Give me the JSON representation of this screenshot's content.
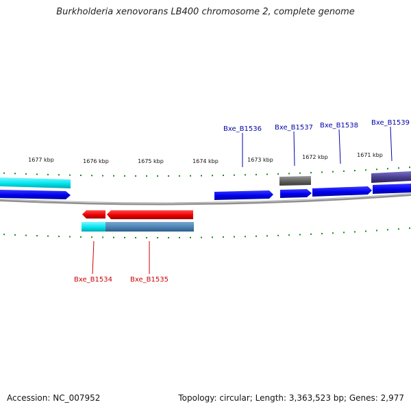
{
  "title": "Burkholderia xenovorans LB400 chromosome 2, complete genome",
  "footer": {
    "accession": "Accession: NC_007952",
    "topology": "Topology: circular; Length: 3,363,523 bp; Genes: 2,977"
  },
  "kbp_labels": [
    "1677 kbp",
    "1676 kbp",
    "1675 kbp",
    "1674 kbp",
    "1673 kbp",
    "1672 kbp",
    "1671 kbp"
  ],
  "gene_labels": {
    "top": [
      "Bxe_B1536",
      "Bxe_B1537",
      "Bxe_B1538",
      "Bxe_B1539"
    ],
    "bottom": [
      "Bxe_B1534",
      "Bxe_B1535"
    ]
  },
  "colors": {
    "forward_gene": "#0000ee",
    "reverse_gene": "#ee0000",
    "label_forward": "#0000aa",
    "label_reverse": "#cc0000",
    "tick": "#118811",
    "cyan_feature": "#00e5ee",
    "steel_feature": "#4a82b4",
    "gray_feature": "#5f5f5f",
    "slate_feature": "#483d8b",
    "backbone": "#888888"
  }
}
